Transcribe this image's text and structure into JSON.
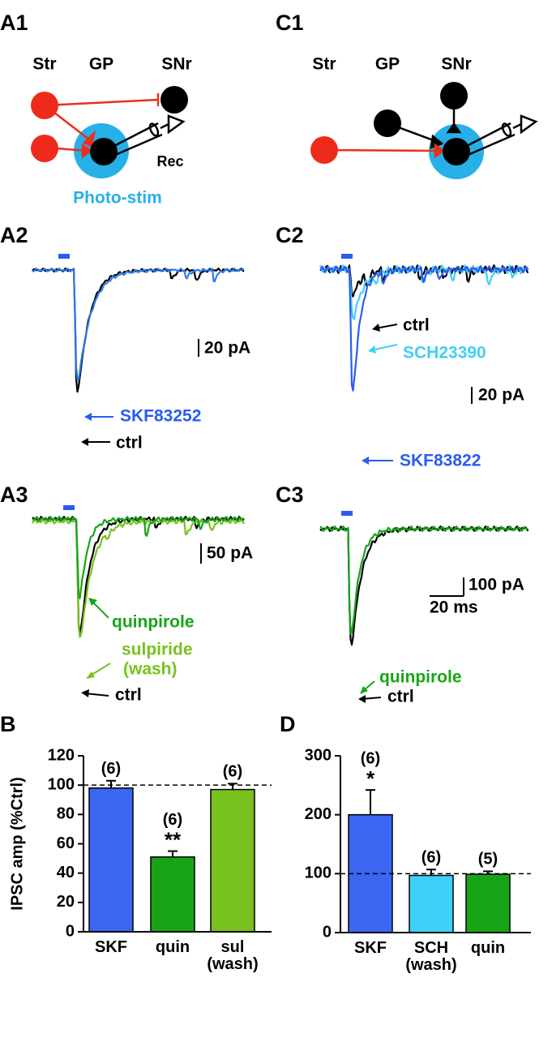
{
  "panels": {
    "A1": {
      "label": "A1",
      "str": "Str",
      "gp": "GP",
      "snr": "SNr",
      "rec": "Rec",
      "stim": "Photo-stim"
    },
    "C1": {
      "label": "C1",
      "str": "Str",
      "gp": "GP",
      "snr": "SNr"
    },
    "A2": {
      "label": "A2",
      "scale": "20 pA",
      "drug": "SKF83252",
      "ctrl": "ctrl"
    },
    "A3": {
      "label": "A3",
      "scale": "50 pA",
      "drug": "quinpirole",
      "drug2": "sulpiride",
      "drug2b": "(wash)",
      "ctrl": "ctrl"
    },
    "C2": {
      "label": "C2",
      "ctrl": "ctrl",
      "drug": "SCH23390",
      "scale": "20 pA",
      "drug2": "SKF83822"
    },
    "C3": {
      "label": "C3",
      "scale": "100 pA",
      "time": "20 ms",
      "drug": "quinpirole",
      "ctrl": "ctrl"
    },
    "B": {
      "label": "B"
    },
    "D": {
      "label": "D"
    }
  },
  "chart_data": [
    {
      "type": "bar",
      "ylabel": "IPSC amp (%Ctrl)",
      "categories": [
        "SKF",
        "quin",
        "sul\n(wash)"
      ],
      "values": [
        98,
        51,
        97
      ],
      "errors": [
        5,
        4,
        4
      ],
      "colors": [
        "#3a66f2",
        "#17a517",
        "#78c11f"
      ],
      "n_labels": [
        "(6)",
        "(6)",
        "(6)"
      ],
      "sig_labels": [
        null,
        "**",
        null
      ],
      "ylim": [
        0,
        120
      ],
      "yticks": [
        0,
        20,
        40,
        60,
        80,
        100,
        120
      ],
      "reference_line": 100
    },
    {
      "type": "bar",
      "categories": [
        "SKF",
        "SCH\n(wash)",
        "quin"
      ],
      "values": [
        200,
        97,
        99
      ],
      "errors": [
        42,
        10,
        5
      ],
      "colors": [
        "#3a66f2",
        "#3fd0f7",
        "#17a517"
      ],
      "n_labels": [
        "(6)",
        "(6)",
        "(5)"
      ],
      "sig_labels": [
        "*",
        null,
        null
      ],
      "ylim": [
        0,
        300
      ],
      "yticks": [
        0,
        100,
        200,
        300
      ],
      "reference_line": 100
    }
  ]
}
